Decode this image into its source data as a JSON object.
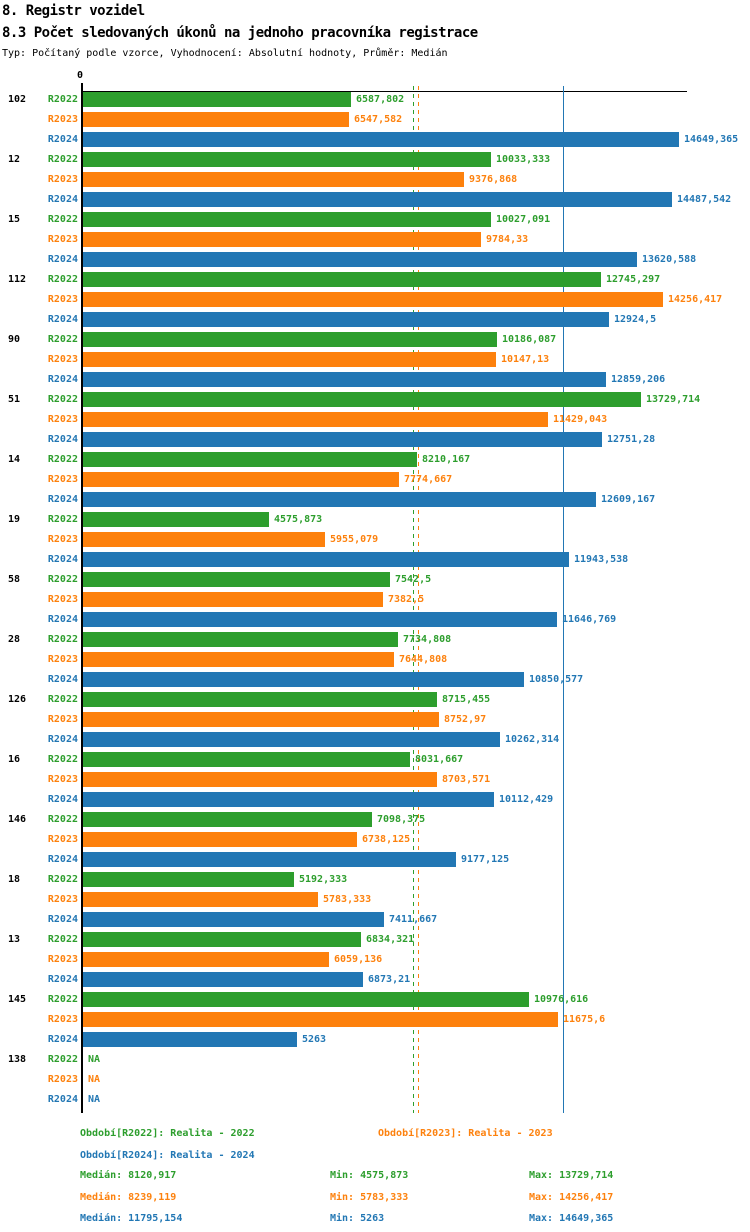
{
  "header": {
    "title": "8. Registr vozidel",
    "subtitle": "8.3 Počet sledovaných úkonů na jednoho pracovníka registrace",
    "meta": "Typ: Počítaný podle vzorce, Vyhodnocení: Absolutní hodnoty, Průměr: Medián"
  },
  "chart_data": {
    "type": "bar",
    "orientation": "horizontal",
    "xlim": [
      0,
      14850
    ],
    "origin_tick_label": "0",
    "na_text": "NA",
    "grid": false,
    "series": [
      {
        "key": "R2022",
        "name": "Realita - 2022",
        "color": "#2d9e2d",
        "median": 8120.917,
        "min": 4575.873,
        "max": 13729.714,
        "median_line_style": "dashed"
      },
      {
        "key": "R2023",
        "name": "Realita - 2023",
        "color": "#fd810d",
        "median": 8239.119,
        "min": 5783.333,
        "max": 14256.417,
        "median_line_style": "dashed"
      },
      {
        "key": "R2024",
        "name": "Realita - 2024",
        "color": "#2277b4",
        "median": 11795.154,
        "min": 5263,
        "max": 14649.365,
        "median_line_style": "solid"
      }
    ],
    "groups": [
      {
        "category": "102",
        "values": [
          6587.802,
          6547.582,
          14649.365
        ],
        "value_labels": [
          "6587,802",
          "6547,582",
          "14649,365"
        ]
      },
      {
        "category": "12",
        "values": [
          10033.333,
          9376.868,
          14487.542
        ],
        "value_labels": [
          "10033,333",
          "9376,868",
          "14487,542"
        ]
      },
      {
        "category": "15",
        "values": [
          10027.091,
          9784.33,
          13620.588
        ],
        "value_labels": [
          "10027,091",
          "9784,33",
          "13620,588"
        ]
      },
      {
        "category": "112",
        "values": [
          12745.297,
          14256.417,
          12924.5
        ],
        "value_labels": [
          "12745,297",
          "14256,417",
          "12924,5"
        ]
      },
      {
        "category": "90",
        "values": [
          10186.087,
          10147.13,
          12859.206
        ],
        "value_labels": [
          "10186,087",
          "10147,13",
          "12859,206"
        ]
      },
      {
        "category": "51",
        "values": [
          13729.714,
          11429.043,
          12751.28
        ],
        "value_labels": [
          "13729,714",
          "11429,043",
          "12751,28"
        ]
      },
      {
        "category": "14",
        "values": [
          8210.167,
          7774.667,
          12609.167
        ],
        "value_labels": [
          "8210,167",
          "7774,667",
          "12609,167"
        ]
      },
      {
        "category": "19",
        "values": [
          4575.873,
          5955.079,
          11943.538
        ],
        "value_labels": [
          "4575,873",
          "5955,079",
          "11943,538"
        ]
      },
      {
        "category": "58",
        "values": [
          7542.5,
          7382.5,
          11646.769
        ],
        "value_labels": [
          "7542,5",
          "7382,5",
          "11646,769"
        ]
      },
      {
        "category": "28",
        "values": [
          7734.808,
          7644.808,
          10850.577
        ],
        "value_labels": [
          "7734,808",
          "7644,808",
          "10850,577"
        ]
      },
      {
        "category": "126",
        "values": [
          8715.455,
          8752.97,
          10262.314
        ],
        "value_labels": [
          "8715,455",
          "8752,97",
          "10262,314"
        ]
      },
      {
        "category": "16",
        "values": [
          8031.667,
          8703.571,
          10112.429
        ],
        "value_labels": [
          "8031,667",
          "8703,571",
          "10112,429"
        ]
      },
      {
        "category": "146",
        "values": [
          7098.375,
          6738.125,
          9177.125
        ],
        "value_labels": [
          "7098,375",
          "6738,125",
          "9177,125"
        ]
      },
      {
        "category": "18",
        "values": [
          5192.333,
          5783.333,
          7411.667
        ],
        "value_labels": [
          "5192,333",
          "5783,333",
          "7411,667"
        ]
      },
      {
        "category": "13",
        "values": [
          6834.321,
          6059.136,
          6873.21
        ],
        "value_labels": [
          "6834,321",
          "6059,136",
          "6873,21"
        ]
      },
      {
        "category": "145",
        "values": [
          10976.616,
          11675.6,
          5263
        ],
        "value_labels": [
          "10976,616",
          "11675,6",
          "5263"
        ]
      },
      {
        "category": "138",
        "values": [
          null,
          null,
          null
        ],
        "value_labels": [
          "NA",
          "NA",
          "NA"
        ]
      }
    ]
  },
  "footer": {
    "legend": [
      "Období[R2022]: Realita - 2022",
      "Období[R2023]: Realita - 2023",
      "Období[R2024]: Realita - 2024"
    ],
    "stats_rows": [
      {
        "median": "Medián: 8120,917",
        "min": "Min: 4575,873",
        "max": "Max: 13729,714"
      },
      {
        "median": "Medián: 8239,119",
        "min": "Min: 5783,333",
        "max": "Max: 14256,417"
      },
      {
        "median": "Medián: 11795,154",
        "min": "Min: 5263",
        "max": "Max: 14649,365"
      }
    ]
  }
}
